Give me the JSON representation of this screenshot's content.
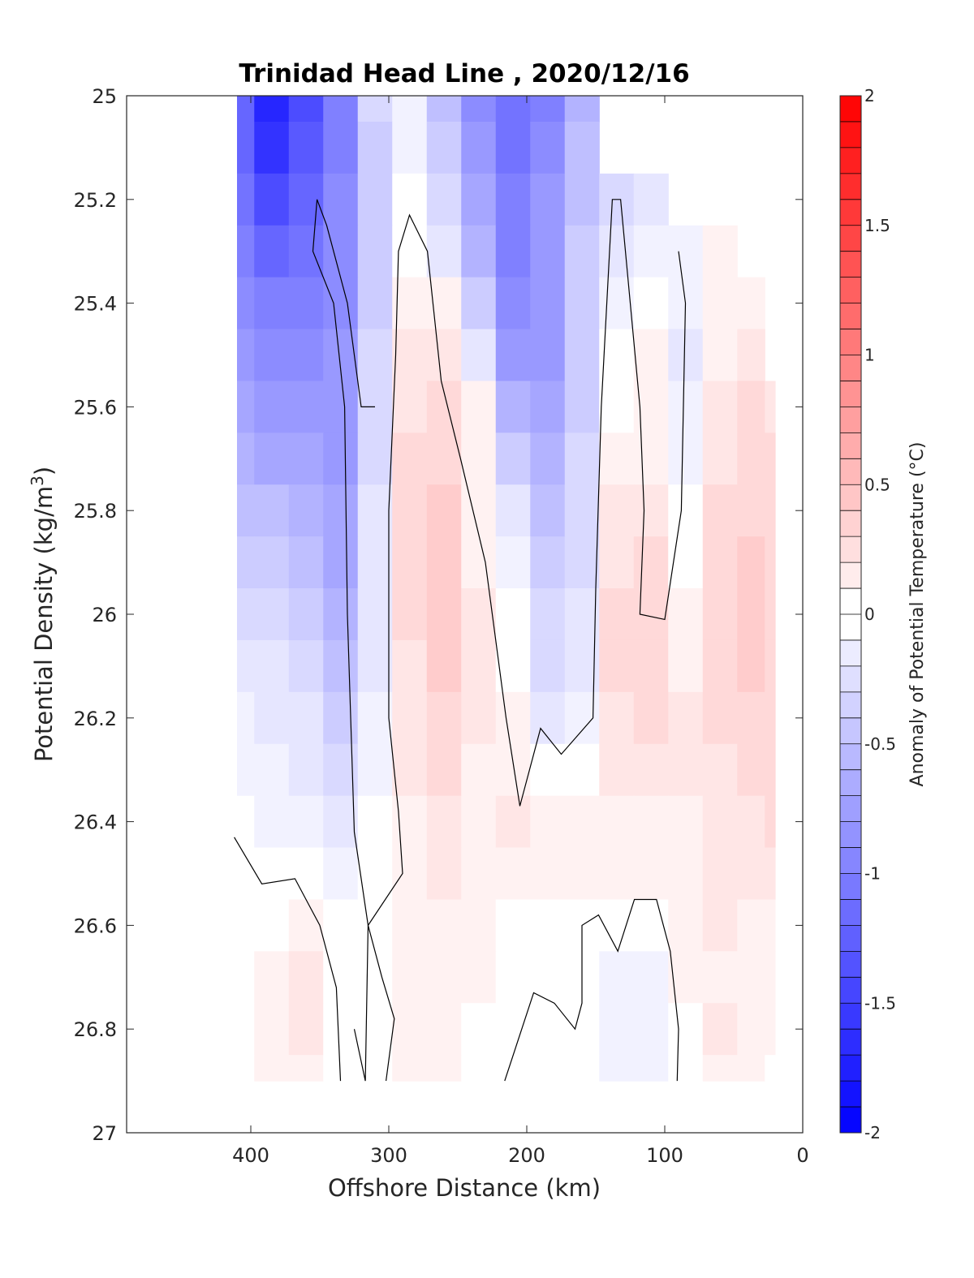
{
  "chart_data": {
    "type": "heatmap",
    "title": "Trinidad Head Line , 2020/12/16",
    "xlabel": "Offshore Distance (km)",
    "ylabel_main": "Potential Density (kg/m",
    "ylabel_sup": "3",
    "ylabel_close": ")",
    "colorbar_label": "Anomaly of Potential Temperature (°C)",
    "xlim": [
      490,
      0
    ],
    "ylim": [
      27,
      25
    ],
    "xticks": [
      400,
      300,
      200,
      100,
      0
    ],
    "xtick_labels": [
      "400",
      "300",
      "200",
      "100",
      "0"
    ],
    "yticks": [
      25,
      25.2,
      25.4,
      25.6,
      25.8,
      26,
      26.2,
      26.4,
      26.6,
      26.8,
      27
    ],
    "ytick_labels": [
      "25",
      "25.2",
      "25.4",
      "25.6",
      "25.8",
      "26",
      "26.2",
      "26.4",
      "26.6",
      "26.8",
      "27"
    ],
    "colorbar": {
      "range": [
        -2,
        2
      ],
      "step": 0.1,
      "ticks": [
        -2,
        -1.5,
        -1,
        -0.5,
        0,
        0.5,
        1,
        1.5,
        2
      ],
      "tick_labels": [
        "-2",
        "-1.5",
        "-1",
        "-0.5",
        "0",
        "0.5",
        "1",
        "1.5",
        "2"
      ],
      "low_color": "#0000ff",
      "mid_color": "#ffffff",
      "high_color": "#ff0000"
    },
    "field": {
      "x": [
        410,
        385,
        360,
        335,
        310,
        285,
        260,
        235,
        210,
        185,
        160,
        135,
        110,
        85,
        60,
        35,
        20
      ],
      "y": [
        25.0,
        25.1,
        25.2,
        25.3,
        25.4,
        25.5,
        25.6,
        25.7,
        25.8,
        25.9,
        26.0,
        26.1,
        26.2,
        26.3,
        26.4,
        26.5,
        26.6,
        26.7,
        26.8,
        26.9
      ],
      "y_bottom": 26.9,
      "values": [
        [
          -1.2,
          -1.7,
          -1.4,
          -1.0,
          -0.3,
          -0.1,
          -0.5,
          -0.9,
          -1.1,
          -1.0,
          -0.6
        ],
        [
          -1.2,
          -1.6,
          -1.3,
          -1.0,
          -0.4,
          -0.1,
          -0.4,
          -0.8,
          -1.1,
          -0.9,
          -0.5
        ],
        [
          -1.1,
          -1.4,
          -1.2,
          -0.9,
          -0.4,
          0.0,
          -0.3,
          -0.7,
          -1.0,
          -0.8,
          -0.5,
          -0.3,
          -0.2
        ],
        [
          -1.0,
          -1.2,
          -1.1,
          -0.9,
          -0.4,
          0.0,
          -0.2,
          -0.6,
          -1.0,
          -0.8,
          -0.4,
          -0.2,
          -0.1,
          -0.1,
          0.1
        ],
        [
          -0.9,
          -1.0,
          -1.0,
          -0.9,
          -0.4,
          0.1,
          0.1,
          -0.4,
          -0.9,
          -0.8,
          -0.4,
          -0.1,
          0.0,
          -0.1,
          0.1,
          0.1
        ],
        [
          -0.8,
          -0.9,
          -0.9,
          -0.8,
          -0.3,
          0.2,
          0.2,
          -0.2,
          -0.8,
          -0.8,
          -0.4,
          0.0,
          0.1,
          -0.2,
          0.1,
          0.2
        ],
        [
          -0.7,
          -0.8,
          -0.8,
          -0.8,
          -0.3,
          0.2,
          0.3,
          0.1,
          -0.6,
          -0.7,
          -0.4,
          0.0,
          0.1,
          -0.1,
          0.2,
          0.3,
          0.2
        ],
        [
          -0.6,
          -0.7,
          -0.7,
          -0.8,
          -0.3,
          0.3,
          0.3,
          0.1,
          -0.4,
          -0.6,
          -0.3,
          0.1,
          0.1,
          -0.1,
          0.2,
          0.3,
          0.3
        ],
        [
          -0.5,
          -0.5,
          -0.6,
          -0.7,
          -0.2,
          0.3,
          0.4,
          0.1,
          -0.2,
          -0.5,
          -0.3,
          0.2,
          0.2,
          0.0,
          0.3,
          0.3,
          0.3
        ],
        [
          -0.4,
          -0.4,
          -0.5,
          -0.7,
          -0.2,
          0.3,
          0.4,
          0.1,
          -0.1,
          -0.4,
          -0.3,
          0.2,
          0.3,
          0.0,
          0.3,
          0.4,
          0.3
        ],
        [
          -0.3,
          -0.3,
          -0.4,
          -0.6,
          -0.2,
          0.3,
          0.4,
          0.2,
          0.0,
          -0.3,
          -0.2,
          0.3,
          0.3,
          0.1,
          0.3,
          0.4,
          0.3
        ],
        [
          -0.2,
          -0.2,
          -0.3,
          -0.5,
          -0.2,
          0.2,
          0.4,
          0.2,
          0.0,
          -0.3,
          -0.2,
          0.3,
          0.3,
          0.1,
          0.3,
          0.4,
          0.3
        ],
        [
          -0.1,
          -0.2,
          -0.2,
          -0.4,
          -0.1,
          0.2,
          0.3,
          0.2,
          0.1,
          -0.2,
          -0.1,
          0.2,
          0.3,
          0.2,
          0.3,
          0.3,
          0.3
        ],
        [
          -0.1,
          -0.1,
          -0.2,
          -0.3,
          -0.1,
          0.2,
          0.3,
          0.1,
          0.1,
          0.0,
          0.0,
          0.2,
          0.2,
          0.2,
          0.2,
          0.3,
          0.3
        ],
        [
          0.0,
          -0.1,
          -0.1,
          -0.2,
          0.0,
          0.1,
          0.2,
          0.1,
          0.2,
          0.1,
          0.1,
          0.1,
          0.1,
          0.1,
          0.2,
          0.2,
          0.3
        ],
        [
          0.0,
          0.0,
          0.0,
          -0.1,
          0.0,
          0.1,
          0.2,
          0.1,
          0.1,
          0.1,
          0.1,
          0.1,
          0.1,
          0.1,
          0.2,
          0.2,
          0.2
        ],
        [
          0.0,
          0.0,
          0.1,
          0.0,
          0.0,
          0.1,
          0.1,
          0.1,
          0.0,
          0.0,
          0.0,
          0.0,
          0.0,
          0.1,
          0.2,
          0.1,
          0.1
        ],
        [
          0.0,
          0.1,
          0.2,
          0.0,
          0.0,
          0.1,
          0.1,
          0.1,
          0.0,
          0.0,
          0.0,
          -0.1,
          -0.1,
          0.1,
          0.1,
          0.1,
          0.1
        ],
        [
          0.0,
          0.1,
          0.2,
          0.0,
          0.0,
          0.1,
          0.1,
          0.0,
          0.0,
          0.0,
          0.0,
          -0.1,
          -0.1,
          0.0,
          0.2,
          0.1,
          0.1
        ],
        [
          0.0,
          0.1,
          0.1,
          0.0,
          0.0,
          0.1,
          0.1,
          0.0,
          0.0,
          0.0,
          0.0,
          -0.1,
          -0.1,
          0.0,
          0.1,
          0.1,
          0.0
        ]
      ]
    },
    "zero_contours": [
      [
        [
          325,
          26.8
        ],
        [
          317,
          26.9
        ],
        [
          315,
          26.6
        ],
        [
          325,
          26.42
        ],
        [
          330,
          26.0
        ],
        [
          332,
          25.6
        ],
        [
          340,
          25.4
        ],
        [
          355,
          25.3
        ],
        [
          352,
          25.2
        ],
        [
          345,
          25.25
        ],
        [
          330,
          25.4
        ],
        [
          320,
          25.6
        ],
        [
          310,
          25.6
        ]
      ],
      [
        [
          412,
          26.43
        ],
        [
          392,
          26.52
        ],
        [
          368,
          26.51
        ],
        [
          350,
          26.6
        ],
        [
          338,
          26.72
        ],
        [
          335,
          26.9
        ]
      ],
      [
        [
          302,
          26.9
        ],
        [
          296,
          26.78
        ],
        [
          305,
          26.7
        ],
        [
          315,
          26.6
        ],
        [
          290,
          26.5
        ],
        [
          293,
          26.38
        ],
        [
          300,
          26.2
        ],
        [
          300,
          25.8
        ],
        [
          295,
          25.5
        ],
        [
          293,
          25.3
        ],
        [
          285,
          25.23
        ],
        [
          272,
          25.3
        ],
        [
          262,
          25.55
        ],
        [
          248,
          25.7
        ],
        [
          230,
          25.9
        ],
        [
          215,
          26.2
        ],
        [
          205,
          26.37
        ],
        [
          190,
          26.22
        ],
        [
          175,
          26.27
        ],
        [
          152,
          26.2
        ],
        [
          150,
          25.95
        ],
        [
          146,
          25.6
        ],
        [
          142,
          25.4
        ],
        [
          138,
          25.2
        ],
        [
          132,
          25.2
        ],
        [
          125,
          25.4
        ],
        [
          118,
          25.6
        ],
        [
          115,
          25.8
        ],
        [
          118,
          26.0
        ],
        [
          100,
          26.01
        ],
        [
          88,
          25.8
        ],
        [
          85,
          25.4
        ],
        [
          90,
          25.3
        ]
      ],
      [
        [
          216,
          26.9
        ],
        [
          195,
          26.73
        ],
        [
          180,
          26.75
        ],
        [
          165,
          26.8
        ],
        [
          160,
          26.75
        ],
        [
          160,
          26.6
        ],
        [
          148,
          26.58
        ],
        [
          134,
          26.65
        ],
        [
          122,
          26.55
        ],
        [
          106,
          26.55
        ],
        [
          96,
          26.65
        ],
        [
          90,
          26.8
        ],
        [
          91,
          26.9
        ]
      ]
    ]
  }
}
